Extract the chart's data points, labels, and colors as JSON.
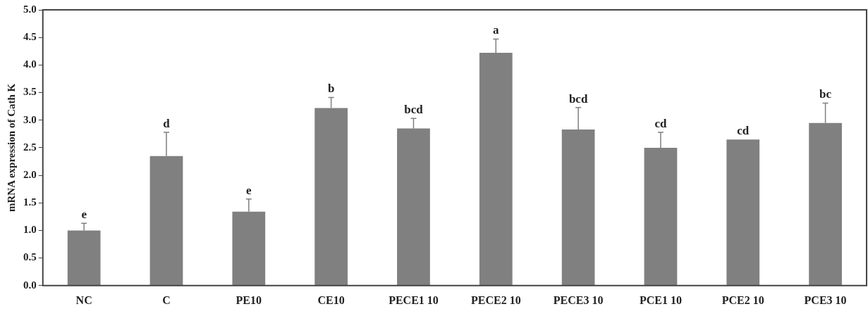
{
  "chart_data": {
    "type": "bar",
    "ylabel": "mRNA expression of Cath K",
    "categories": [
      "NC",
      "C",
      "PE10",
      "CE10",
      "PECE1 10",
      "PECE2 10",
      "PECE3 10",
      "PCE1 10",
      "PCE2 10",
      "PCE3 10"
    ],
    "values": [
      1.0,
      2.35,
      1.34,
      3.22,
      2.85,
      4.22,
      2.83,
      2.5,
      2.65,
      2.95
    ],
    "errors": [
      0.13,
      0.43,
      0.23,
      0.19,
      0.18,
      0.25,
      0.4,
      0.28,
      null,
      0.36
    ],
    "color": "#808080",
    "ylim": [
      0,
      5
    ],
    "yticks": [
      {
        "value": 0,
        "label": "0.0"
      },
      {
        "value": 0.5,
        "label": "0.5"
      },
      {
        "value": 1,
        "label": "1.0"
      },
      {
        "value": 1.5,
        "label": "1.5"
      },
      {
        "value": 2,
        "label": "2.0"
      },
      {
        "value": 2.5,
        "label": "2.5"
      },
      {
        "value": 3,
        "label": "3.0"
      },
      {
        "value": 3.5,
        "label": "3.5"
      },
      {
        "value": 4,
        "label": "4.0"
      },
      {
        "value": 4.5,
        "label": "4.5"
      },
      {
        "value": 5,
        "label": "5.0"
      }
    ],
    "grid": false,
    "legend": false,
    "annotations": [
      {
        "text": "e",
        "x": "NC",
        "y": 1.13
      },
      {
        "text": "d",
        "x": "C",
        "y": 2.78
      },
      {
        "text": "e",
        "x": "PE10",
        "y": 1.57
      },
      {
        "text": "b",
        "x": "CE10",
        "y": 3.41
      },
      {
        "text": "bcd",
        "x": "PECE1 10",
        "y": 3.03
      },
      {
        "text": "a",
        "x": "PECE2 10",
        "y": 4.47
      },
      {
        "text": "bcd",
        "x": "PECE3 10",
        "y": 3.23
      },
      {
        "text": "cd",
        "x": "PCE1 10",
        "y": 2.78
      },
      {
        "text": "cd",
        "x": "PCE2 10",
        "y": 2.65
      },
      {
        "text": "bc",
        "x": "PCE3 10",
        "y": 3.31
      }
    ]
  }
}
